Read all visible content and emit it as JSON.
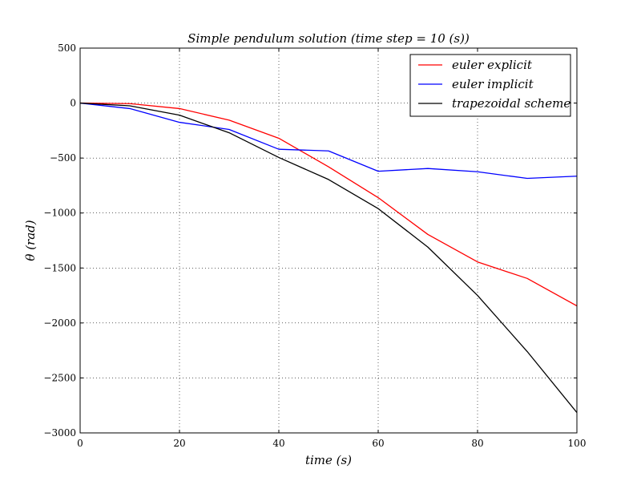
{
  "chart_data": {
    "type": "line",
    "title": "Simple pendulum solution (time step = 10 (s))",
    "xlabel": "time (s)",
    "ylabel": "θ (rad)",
    "xlim": [
      0,
      100
    ],
    "ylim": [
      -3000,
      500
    ],
    "xticks": [
      0,
      20,
      40,
      60,
      80,
      100
    ],
    "yticks": [
      500,
      0,
      -500,
      -1000,
      -1500,
      -2000,
      -2500,
      -3000
    ],
    "grid": true,
    "legend_position": "top-right",
    "x": [
      0,
      10,
      20,
      30,
      40,
      50,
      60,
      70,
      80,
      90,
      100
    ],
    "series": [
      {
        "name": "euler explicit",
        "color": "#ff0000",
        "values": [
          0,
          -5,
          -50,
          -155,
          -320,
          -580,
          -860,
          -1195,
          -1445,
          -1595,
          -1845
        ]
      },
      {
        "name": "euler implicit",
        "color": "#0000ff",
        "values": [
          0,
          -50,
          -175,
          -240,
          -420,
          -435,
          -620,
          -595,
          -625,
          -685,
          -665
        ]
      },
      {
        "name": "trapezoidal scheme",
        "color": "#000000",
        "values": [
          0,
          -25,
          -110,
          -270,
          -495,
          -695,
          -960,
          -1310,
          -1750,
          -2260,
          -2815
        ]
      }
    ]
  }
}
